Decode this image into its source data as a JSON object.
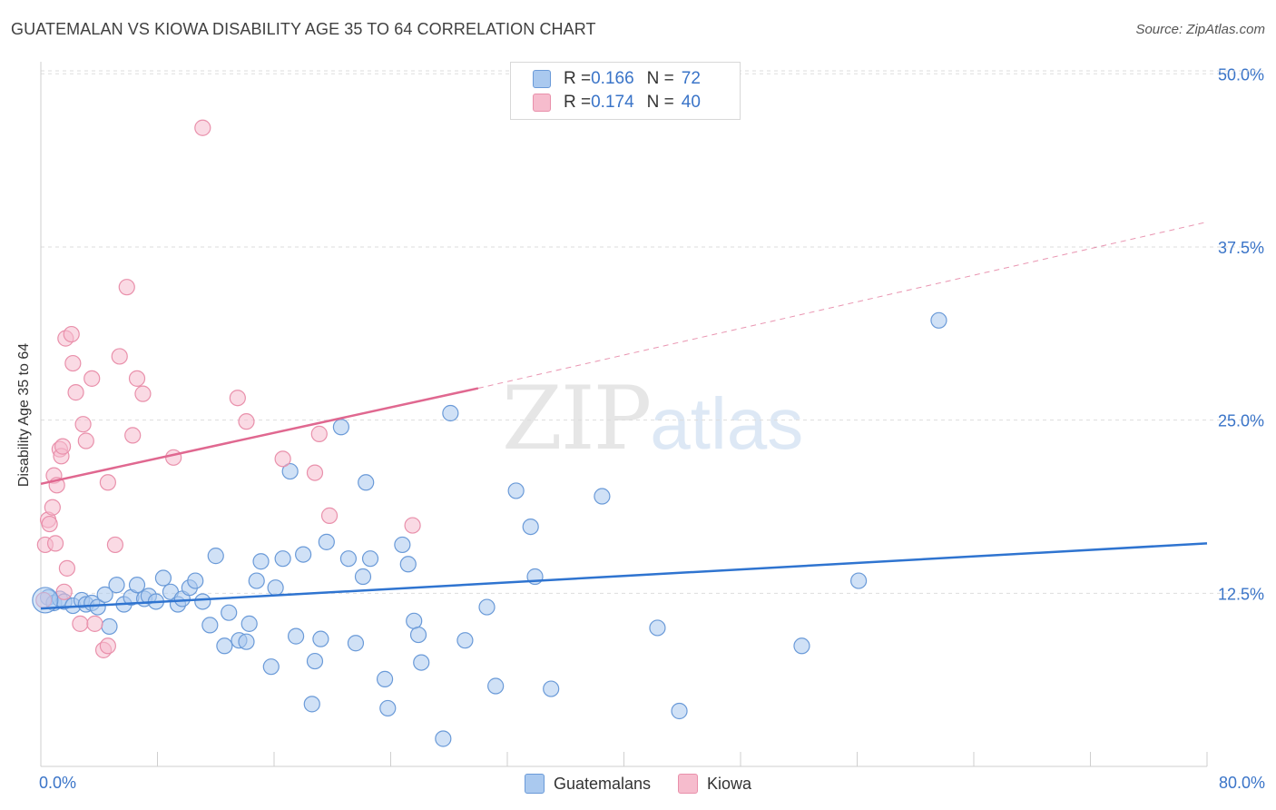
{
  "title": "GUATEMALAN VS KIOWA DISABILITY AGE 35 TO 64 CORRELATION CHART",
  "source": "Source: ZipAtlas.com",
  "watermark": {
    "zip": "ZIP",
    "atlas": "atlas"
  },
  "legend": {
    "guatemalans": {
      "r_label": "R = ",
      "r_value": "0.166",
      "n_label": "N = ",
      "n_value": "72"
    },
    "kiowa": {
      "r_label": "R = ",
      "r_value": "0.174",
      "n_label": "N = ",
      "n_value": "40"
    }
  },
  "bottom_legend": {
    "guatemalans": "Guatemalans",
    "kiowa": "Kiowa"
  },
  "x_min_label": "0.0%",
  "x_max_label": "80.0%",
  "colors": {
    "blue_fill": "#aac9ef",
    "blue_stroke": "#6a9ad8",
    "blue_line": "#2f74d0",
    "pink_fill": "#f6bccd",
    "pink_stroke": "#e990ab",
    "pink_line": "#e06890",
    "tick_text": "#3a74c8",
    "grid": "#dddddd"
  },
  "chart_data": {
    "type": "scatter",
    "title": "GUATEMALAN VS KIOWA DISABILITY AGE 35 TO 64 CORRELATION CHART",
    "xlabel": "",
    "ylabel": "Disability Age 35 to 64",
    "xlim": [
      0,
      80
    ],
    "ylim": [
      0,
      51
    ],
    "y_ticks": [
      12.5,
      25.0,
      37.5,
      50.0
    ],
    "y_tick_labels": [
      "12.5%",
      "25.0%",
      "37.5%",
      "50.0%"
    ],
    "series": [
      {
        "name": "Guatemalans",
        "color": "#6a9ad8",
        "points": [
          [
            0.5,
            12.2
          ],
          [
            0.9,
            11.8
          ],
          [
            1.3,
            12.1
          ],
          [
            1.6,
            11.9
          ],
          [
            2.2,
            11.6
          ],
          [
            2.8,
            12
          ],
          [
            3.1,
            11.7
          ],
          [
            3.5,
            11.8
          ],
          [
            3.9,
            11.5
          ],
          [
            4.7,
            10.1
          ],
          [
            4.4,
            12.4
          ],
          [
            5.2,
            13.1
          ],
          [
            5.7,
            11.7
          ],
          [
            6.2,
            12.2
          ],
          [
            6.6,
            13.1
          ],
          [
            7.1,
            12.1
          ],
          [
            7.4,
            12.3
          ],
          [
            7.9,
            11.9
          ],
          [
            8.4,
            13.6
          ],
          [
            8.9,
            12.6
          ],
          [
            9.4,
            11.7
          ],
          [
            9.7,
            12.1
          ],
          [
            10.2,
            12.9
          ],
          [
            10.6,
            13.4
          ],
          [
            11.1,
            11.9
          ],
          [
            11.6,
            10.2
          ],
          [
            12.0,
            15.2
          ],
          [
            12.6,
            8.7
          ],
          [
            12.9,
            11.1
          ],
          [
            13.6,
            9.1
          ],
          [
            14.1,
            9.0
          ],
          [
            14.3,
            10.3
          ],
          [
            14.8,
            13.4
          ],
          [
            15.1,
            14.8
          ],
          [
            15.8,
            7.2
          ],
          [
            16.1,
            12.9
          ],
          [
            16.6,
            15.0
          ],
          [
            17.1,
            21.3
          ],
          [
            17.5,
            9.4
          ],
          [
            18.0,
            15.3
          ],
          [
            18.6,
            4.5
          ],
          [
            18.8,
            7.6
          ],
          [
            19.2,
            9.2
          ],
          [
            19.6,
            16.2
          ],
          [
            20.6,
            24.5
          ],
          [
            21.1,
            15.0
          ],
          [
            21.6,
            8.9
          ],
          [
            22.1,
            13.7
          ],
          [
            22.3,
            20.5
          ],
          [
            22.6,
            15.0
          ],
          [
            23.6,
            6.3
          ],
          [
            23.8,
            4.2
          ],
          [
            24.8,
            16.0
          ],
          [
            25.2,
            14.6
          ],
          [
            25.6,
            10.5
          ],
          [
            25.9,
            9.5
          ],
          [
            26.1,
            7.5
          ],
          [
            27.6,
            2.0
          ],
          [
            28.1,
            25.5
          ],
          [
            29.1,
            9.1
          ],
          [
            30.6,
            11.5
          ],
          [
            31.2,
            5.8
          ],
          [
            32.6,
            19.9
          ],
          [
            33.6,
            17.3
          ],
          [
            33.9,
            13.7
          ],
          [
            35.0,
            5.6
          ],
          [
            38.5,
            19.5
          ],
          [
            42.3,
            10.0
          ],
          [
            43.8,
            4.0
          ],
          [
            52.2,
            8.7
          ],
          [
            56.1,
            13.4
          ],
          [
            61.6,
            32.2
          ]
        ],
        "trend": {
          "x": [
            0,
            80
          ],
          "y": [
            11.4,
            16.1
          ]
        }
      },
      {
        "name": "Kiowa",
        "color": "#e990ab",
        "points": [
          [
            0.2,
            12.0
          ],
          [
            0.3,
            16.0
          ],
          [
            0.5,
            17.8
          ],
          [
            0.6,
            17.5
          ],
          [
            0.8,
            18.7
          ],
          [
            0.9,
            21.0
          ],
          [
            1.0,
            16.1
          ],
          [
            1.1,
            20.3
          ],
          [
            1.3,
            22.9
          ],
          [
            1.4,
            22.4
          ],
          [
            1.5,
            23.1
          ],
          [
            1.6,
            12.6
          ],
          [
            1.7,
            30.9
          ],
          [
            1.8,
            14.3
          ],
          [
            2.1,
            31.2
          ],
          [
            2.2,
            29.1
          ],
          [
            2.4,
            27.0
          ],
          [
            2.7,
            10.3
          ],
          [
            2.9,
            24.7
          ],
          [
            3.1,
            23.5
          ],
          [
            3.5,
            28.0
          ],
          [
            3.7,
            10.3
          ],
          [
            4.3,
            8.4
          ],
          [
            4.6,
            8.7
          ],
          [
            4.6,
            20.5
          ],
          [
            5.1,
            16.0
          ],
          [
            5.4,
            29.6
          ],
          [
            5.9,
            34.6
          ],
          [
            6.3,
            23.9
          ],
          [
            6.6,
            28.0
          ],
          [
            7.0,
            26.9
          ],
          [
            9.1,
            22.3
          ],
          [
            11.1,
            46.1
          ],
          [
            13.5,
            26.6
          ],
          [
            14.1,
            24.9
          ],
          [
            16.6,
            22.2
          ],
          [
            18.8,
            21.2
          ],
          [
            19.1,
            24.0
          ],
          [
            19.8,
            18.1
          ],
          [
            25.5,
            17.4
          ]
        ],
        "trend": {
          "x": [
            0,
            30
          ],
          "y": [
            20.4,
            27.3
          ]
        },
        "trend_extension": {
          "x": [
            30,
            80
          ],
          "y": [
            27.3,
            39.3
          ]
        }
      }
    ]
  }
}
